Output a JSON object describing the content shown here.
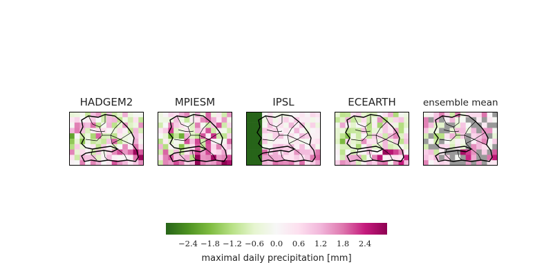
{
  "chart_data": {
    "type": "heatmap",
    "panels": [
      {
        "title": "HADGEM2",
        "seed": 11,
        "bias": 0.35,
        "spread": 1.6,
        "masked": false,
        "uniform": false
      },
      {
        "title": "MPIESM",
        "seed": 23,
        "bias": 0.55,
        "spread": 1.7,
        "masked": false,
        "uniform": false
      },
      {
        "title": "IPSL",
        "seed": 37,
        "bias": 0.5,
        "spread": 1.3,
        "masked": false,
        "uniform": true
      },
      {
        "title": "ECEARTH",
        "seed": 53,
        "bias": 0.2,
        "spread": 1.6,
        "masked": false,
        "uniform": false
      },
      {
        "title": "ensemble mean",
        "seed": 71,
        "bias": 0.45,
        "spread": 1.4,
        "masked": true,
        "uniform": false
      }
    ],
    "colorbar": {
      "label": "maximal daily precipitation [mm]",
      "vmin": -3.0,
      "vmax": 3.0,
      "ticks": [
        -2.4,
        -1.8,
        -1.2,
        -0.6,
        0.0,
        0.6,
        1.2,
        1.8,
        2.4
      ],
      "tick_labels": [
        "−2.4",
        "−1.8",
        "−1.2",
        "−0.6",
        "0.0",
        "0.6",
        "1.2",
        "1.8",
        "2.4"
      ],
      "colormap": "PiYG-reversed",
      "colors": [
        "#276419",
        "#4d9221",
        "#7fbc41",
        "#b8e186",
        "#e6f5d0",
        "#f7f7f7",
        "#fde0ef",
        "#f1b6da",
        "#de77ae",
        "#c51b7d",
        "#8e0152"
      ]
    },
    "masked_color": "#999999",
    "grid_cols": 14,
    "grid_rows": 10
  }
}
